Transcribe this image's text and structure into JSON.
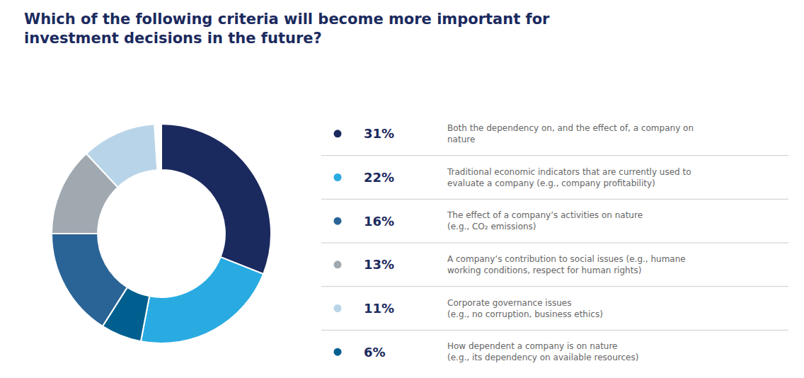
{
  "chart_data": {
    "type": "pie",
    "title": "Which of the following criteria will become more important for\ninvestment decisions in the future?",
    "categories": [
      "Both the dependency on, and the effect of, a company on\nnature",
      "Traditional economic indicators that are currently used to\nevaluate a company (e.g., company profitability)",
      "How dependent a company is on nature\n(e.g., its dependency on available resources)",
      "The effect of a company’s activities on nature\n(e.g., CO₂ emissions)",
      "A company’s contribution to social issues (e.g., humane\nworking conditions, respect for human rights)",
      "Corporate governance issues\n(e.g., no corruption, business ethics)",
      null
    ],
    "values": [
      31,
      22,
      6,
      16,
      13,
      11,
      1
    ],
    "value_labels": [
      "31%",
      "22%",
      "6%",
      "16%",
      "13%",
      "11%",
      null
    ],
    "colors": [
      "#1b2a5e",
      "#29abe2",
      "#005f8e",
      "#2a6496",
      "#a0a8b0",
      "#b8d4e8",
      "#ffffff"
    ],
    "legend": "right"
  }
}
